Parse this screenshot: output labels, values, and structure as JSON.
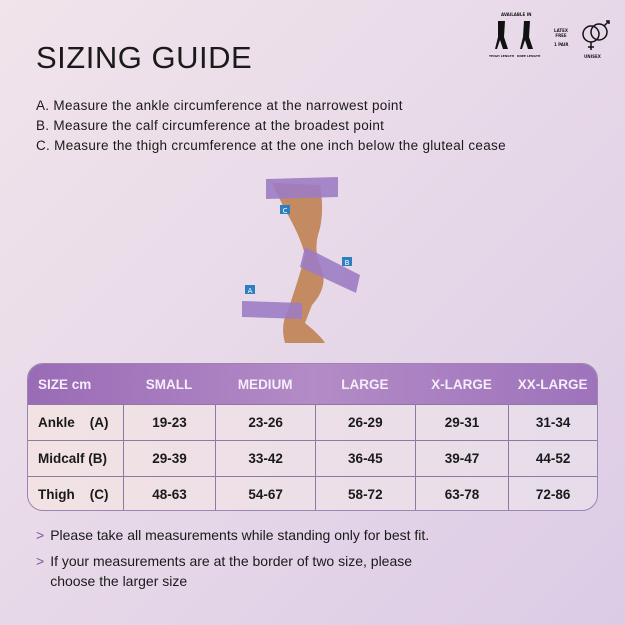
{
  "title": "SIZING GUIDE",
  "steps": [
    "A. Measure the ankle circumference at the narrowest point",
    "B. Measure the calf circumference at the broadest point",
    "C. Measure the thigh crcumference at the one inch below the gluteal cease"
  ],
  "badges": {
    "available": "AVAILABLE IN",
    "thigh": "THIGH LENGTH",
    "knee": "KNEE LENGTH",
    "latex": "LATEX FREE",
    "pair": "1 PAIR",
    "unisex": "UNISEX"
  },
  "markers": {
    "a": "A",
    "b": "B",
    "c": "C"
  },
  "table": {
    "headers": [
      "SIZE cm",
      "SMALL",
      "MEDIUM",
      "LARGE",
      "X-LARGE",
      "XX-LARGE"
    ],
    "rows": [
      {
        "label": "Ankle    (A)",
        "values": [
          "19-23",
          "23-26",
          "26-29",
          "29-31",
          "31-34"
        ]
      },
      {
        "label": "Midcalf (B)",
        "values": [
          "29-39",
          "33-42",
          "36-45",
          "39-47",
          "44-52"
        ]
      },
      {
        "label": "Thigh    (C)",
        "values": [
          "48-63",
          "54-67",
          "58-72",
          "63-78",
          "72-86"
        ]
      }
    ]
  },
  "notes": [
    "Please take all measurements while standing only for best fit.",
    "If your measurements are at the border of two size, please choose the larger size"
  ],
  "colors": {
    "accent": "#9a6bb6",
    "band": "#9d7cc4",
    "marker": "#2e7fc0"
  }
}
